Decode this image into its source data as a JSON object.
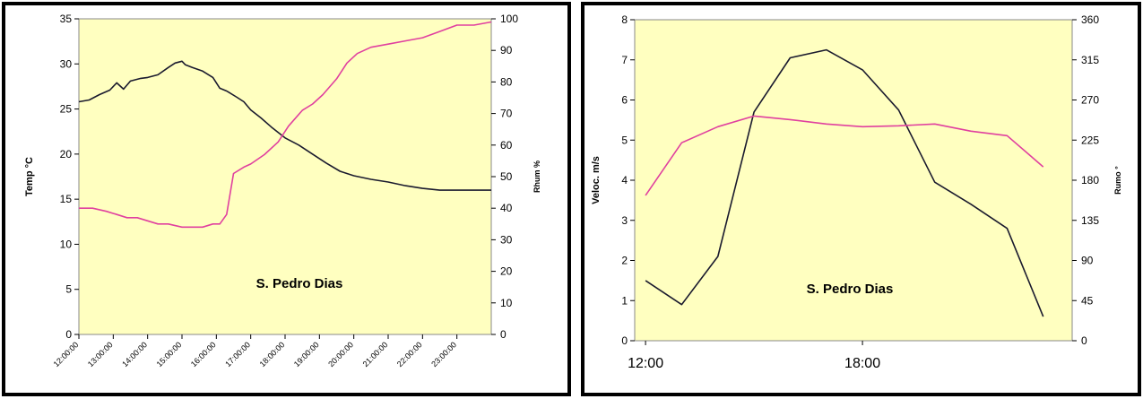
{
  "chart_data": [
    {
      "type": "line",
      "annotation": "S. Pedro Dias",
      "ylabel": "Temp °C",
      "y2label": "Rhum %",
      "ylim": [
        0,
        35
      ],
      "y2lim": [
        0,
        100
      ],
      "yticks": [
        "0",
        "5",
        "10",
        "15",
        "20",
        "25",
        "30",
        "35"
      ],
      "y2ticks": [
        "0",
        "10",
        "20",
        "30",
        "40",
        "50",
        "60",
        "70",
        "80",
        "90",
        "100"
      ],
      "xlim": [
        12,
        24
      ],
      "xtick_labels": [
        "12:00:00",
        "13:00:00",
        "14:00:00",
        "15:00:00",
        "16:00:00",
        "17:00:00",
        "18:00:00",
        "19:00:00",
        "20:00:00",
        "21:00:00",
        "22:00:00",
        "23:00:00"
      ],
      "grid": false,
      "colors": {
        "plot_bg": "#FFFFC0",
        "temp": "#1a1a2e",
        "rhum": "#E0409F"
      },
      "series": [
        {
          "axis": "left",
          "x": [
            12,
            12.3,
            12.6,
            12.9,
            13.1,
            13.3,
            13.5,
            13.8,
            14.0,
            14.3,
            14.6,
            14.8,
            15.0,
            15.1,
            15.3,
            15.6,
            15.9,
            16.1,
            16.3,
            16.6,
            16.8,
            17.0,
            17.3,
            17.6,
            18.0,
            18.4,
            18.8,
            19.2,
            19.6,
            20.0,
            20.5,
            21.0,
            21.5,
            22.0,
            22.5,
            23.0,
            23.5,
            24.0
          ],
          "values": [
            25.8,
            26.0,
            26.6,
            27.1,
            27.9,
            27.2,
            28.1,
            28.4,
            28.5,
            28.8,
            29.6,
            30.1,
            30.3,
            29.9,
            29.6,
            29.2,
            28.5,
            27.3,
            27.0,
            26.3,
            25.8,
            24.9,
            24.0,
            23.0,
            21.8,
            21.0,
            20.0,
            19.0,
            18.1,
            17.6,
            17.2,
            16.9,
            16.5,
            16.2,
            16.0,
            16.0,
            16.0,
            16.0
          ]
        },
        {
          "axis": "right",
          "x": [
            12,
            12.4,
            12.8,
            13.1,
            13.4,
            13.7,
            14.0,
            14.3,
            14.6,
            15.0,
            15.3,
            15.6,
            15.9,
            16.1,
            16.3,
            16.5,
            16.8,
            17.0,
            17.4,
            17.8,
            18.1,
            18.5,
            18.8,
            19.1,
            19.5,
            19.8,
            20.1,
            20.5,
            21.0,
            21.5,
            22.0,
            22.5,
            23.0,
            23.5,
            24.0
          ],
          "values": [
            40,
            40,
            39,
            38,
            37,
            37,
            36,
            35,
            35,
            34,
            34,
            34,
            35,
            35,
            38,
            51,
            53,
            54,
            57,
            61,
            66,
            71,
            73,
            76,
            81,
            86,
            89,
            91,
            92,
            93,
            94,
            96,
            98,
            98,
            99
          ]
        }
      ]
    },
    {
      "type": "line",
      "annotation": "S. Pedro Dias",
      "ylabel": "Veloc.  m/s",
      "y2label": "Rumo °",
      "ylim": [
        0,
        8
      ],
      "y2lim": [
        0,
        360
      ],
      "yticks": [
        "0",
        "1",
        "2",
        "3",
        "4",
        "5",
        "6",
        "7",
        "8"
      ],
      "y2ticks": [
        "0",
        "45",
        "90",
        "135",
        "180",
        "225",
        "270",
        "315",
        "360"
      ],
      "xlim": [
        11.7,
        23.8
      ],
      "xtick_labels": [
        "12:00",
        "18:00"
      ],
      "xtick_values": [
        12,
        18
      ],
      "grid": false,
      "colors": {
        "plot_bg": "#FFFFC0",
        "veloc": "#1a1a2e",
        "rumo": "#E0409F"
      },
      "series": [
        {
          "axis": "left",
          "x": [
            12,
            13,
            14,
            15,
            16,
            17,
            18,
            19,
            20,
            21,
            22,
            23
          ],
          "values": [
            1.5,
            0.9,
            2.1,
            5.7,
            7.05,
            7.25,
            6.75,
            5.75,
            3.95,
            3.4,
            2.8,
            0.6
          ]
        },
        {
          "axis": "right",
          "x": [
            12,
            13,
            14,
            15,
            16,
            17,
            18,
            19,
            20,
            21,
            22,
            23
          ],
          "values": [
            163,
            222,
            240,
            252,
            248,
            243,
            240,
            241,
            243,
            235,
            230,
            195
          ]
        }
      ]
    }
  ]
}
